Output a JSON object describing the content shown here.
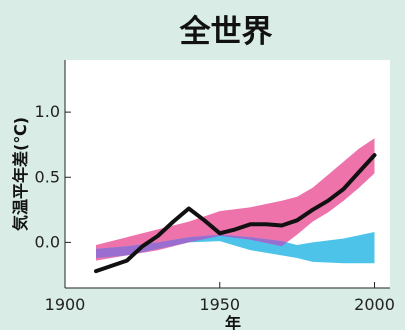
{
  "chart_data": {
    "type": "area",
    "title": "全世界",
    "xlabel": "年",
    "ylabel": "気温平年差(℃)",
    "xlim": [
      1900,
      2005
    ],
    "ylim": [
      -0.35,
      1.4
    ],
    "x_ticks": [
      1900,
      1950,
      2000
    ],
    "x_tick_labels": [
      "1900",
      "1950",
      "2000"
    ],
    "y_ticks": [
      0.0,
      0.5,
      1.0
    ],
    "y_tick_labels": [
      "0.0",
      "0.5",
      "1.0"
    ],
    "grid": false,
    "colors": {
      "background": "#d9ede6",
      "plot_background": "#ffffff",
      "observed": "#111111",
      "band_all_forcings": "#ee73aa",
      "band_natural": "#4ec3ea",
      "band_overlap": "#9a6ed0"
    },
    "series": [
      {
        "style": "line",
        "color": "#111111",
        "x": [
          1910,
          1920,
          1925,
          1930,
          1935,
          1940,
          1945,
          1950,
          1955,
          1960,
          1965,
          1970,
          1975,
          1980,
          1985,
          1990,
          1995,
          2000
        ],
        "values": [
          -0.22,
          -0.14,
          -0.03,
          0.05,
          0.16,
          0.26,
          0.17,
          0.07,
          0.1,
          0.14,
          0.14,
          0.13,
          0.17,
          0.25,
          0.32,
          0.41,
          0.54,
          0.67
        ]
      },
      {
        "style": "band",
        "color": "#ee73aa",
        "x": [
          1910,
          1920,
          1930,
          1940,
          1950,
          1960,
          1970,
          1975,
          1980,
          1985,
          1990,
          1995,
          2000
        ],
        "lower": [
          -0.14,
          -0.1,
          -0.06,
          0.0,
          0.05,
          0.02,
          -0.03,
          0.06,
          0.16,
          0.23,
          0.32,
          0.42,
          0.53
        ],
        "upper": [
          -0.02,
          0.04,
          0.1,
          0.16,
          0.24,
          0.27,
          0.32,
          0.35,
          0.42,
          0.52,
          0.62,
          0.72,
          0.8
        ]
      },
      {
        "style": "band",
        "color": "#4ec3ea",
        "x": [
          1910,
          1920,
          1930,
          1940,
          1950,
          1960,
          1970,
          1975,
          1980,
          1990,
          2000
        ],
        "lower": [
          -0.12,
          -0.1,
          -0.05,
          0.0,
          0.01,
          -0.06,
          -0.1,
          -0.12,
          -0.15,
          -0.16,
          -0.16
        ],
        "upper": [
          -0.05,
          -0.03,
          0.0,
          0.04,
          0.06,
          0.04,
          0.01,
          -0.02,
          0.0,
          0.03,
          0.08
        ]
      }
    ]
  }
}
